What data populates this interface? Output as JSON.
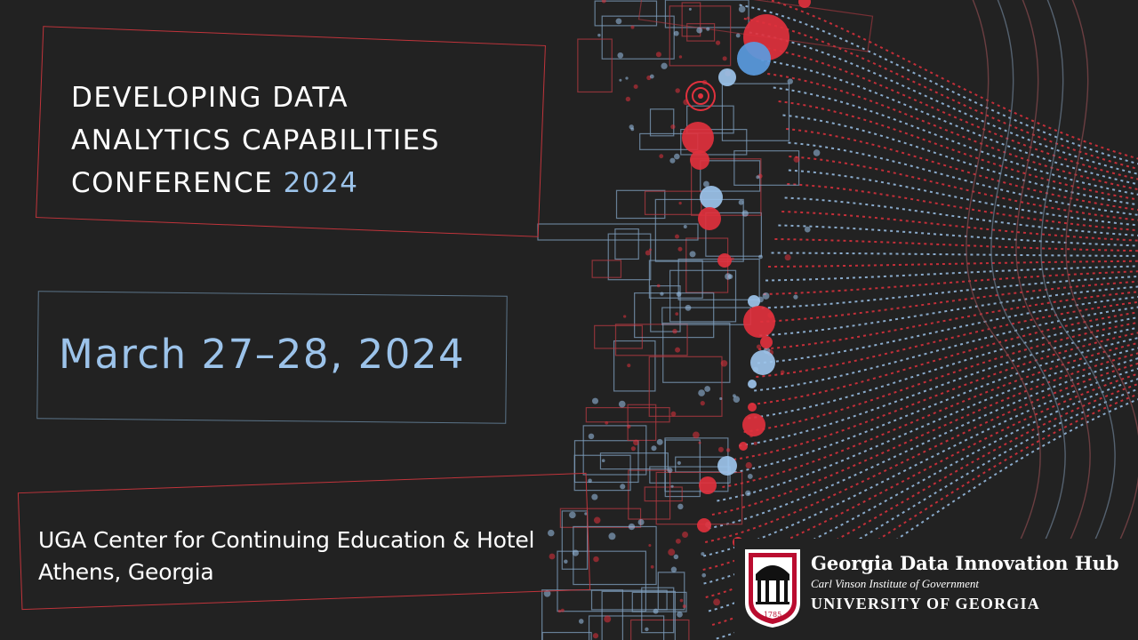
{
  "title": {
    "line1": "DEVELOPING DATA",
    "line2": "ANALYTICS CAPABILITIES",
    "line3_prefix": "CONFERENCE",
    "year": "2024"
  },
  "date": "March 27–28, 2024",
  "venue": {
    "line1": "UGA Center for Continuing Education & Hotel",
    "line2": "Athens, Georgia"
  },
  "logo": {
    "hub_name": "Georgia Data Innovation Hub",
    "institute": "Carl Vinson Institute of Government",
    "university": "UNIVERSITY OF GEORGIA",
    "seal_year": "1785"
  },
  "colors": {
    "background": "#222222",
    "accent_red": "#e0313d",
    "accent_blue": "#9cc3ea",
    "outline_blue": "#7f9fbd",
    "uga_red": "#ba0c2f"
  }
}
